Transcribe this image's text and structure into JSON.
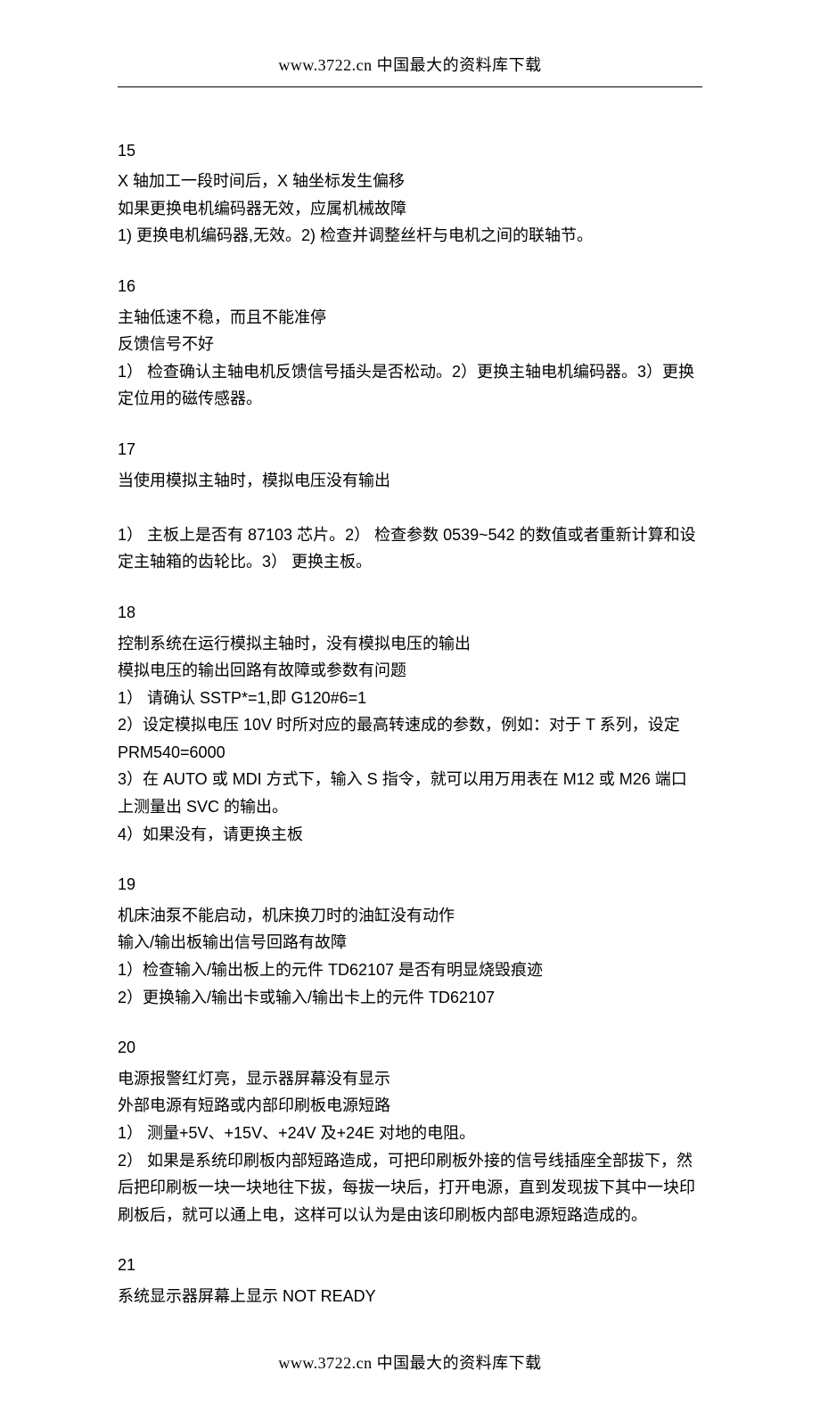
{
  "header": "www.3722.cn 中国最大的资料库下载",
  "footer": "www.3722.cn 中国最大的资料库下载",
  "entries": [
    {
      "num": "15",
      "lines": [
        "X 轴加工一段时间后，X 轴坐标发生偏移",
        "如果更换电机编码器无效，应属机械故障",
        "1) 更换电机编码器,无效。2) 检查并调整丝杆与电机之间的联轴节。"
      ]
    },
    {
      "num": "16",
      "lines": [
        "主轴低速不稳，而且不能准停",
        "反馈信号不好",
        "1） 检查确认主轴电机反馈信号插头是否松动。2）更换主轴电机编码器。3）更换定位用的磁传感器。"
      ]
    },
    {
      "num": "17",
      "lines": [
        "当使用模拟主轴时，模拟电压没有输出",
        "",
        "1） 主板上是否有 87103 芯片。2） 检查参数 0539~542 的数值或者重新计算和设定主轴箱的齿轮比。3） 更换主板。"
      ]
    },
    {
      "num": "18",
      "lines": [
        "控制系统在运行模拟主轴时，没有模拟电压的输出",
        "模拟电压的输出回路有故障或参数有问题",
        "1） 请确认 SSTP*=1,即 G120#6=1",
        "2）设定模拟电压 10V 时所对应的最高转速成的参数，例如：对于 T 系列，设定 PRM540=6000",
        "3）在 AUTO 或 MDI 方式下，输入 S 指令，就可以用万用表在 M12 或 M26 端口上测量出 SVC 的输出。",
        "4）如果没有，请更换主板"
      ]
    },
    {
      "num": "19",
      "lines": [
        "机床油泵不能启动，机床换刀时的油缸没有动作",
        "输入/输出板输出信号回路有故障",
        "1）检查输入/输出板上的元件 TD62107 是否有明显烧毁痕迹",
        "2）更换输入/输出卡或输入/输出卡上的元件 TD62107"
      ]
    },
    {
      "num": "20",
      "lines": [
        "电源报警红灯亮，显示器屏幕没有显示",
        "外部电源有短路或内部印刷板电源短路",
        "1） 测量+5V、+15V、+24V 及+24E 对地的电阻。",
        "2） 如果是系统印刷板内部短路造成，可把印刷板外接的信号线插座全部拔下，然后把印刷板一块一块地往下拔，每拔一块后，打开电源，直到发现拔下其中一块印刷板后，就可以通上电，这样可以认为是由该印刷板内部电源短路造成的。"
      ]
    },
    {
      "num": "21",
      "lines": [
        "系统显示器屏幕上显示 NOT READY"
      ]
    }
  ]
}
